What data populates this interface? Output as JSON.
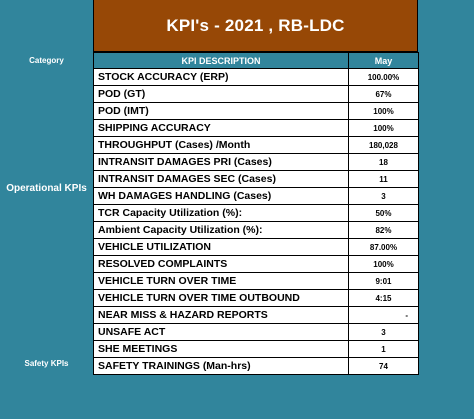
{
  "title": "KPI's - 2021 , RB-LDC",
  "categories": {
    "category_header": "Category",
    "operational": "Operational KPIs",
    "safety": "Safety KPIs"
  },
  "table": {
    "headers": [
      "KPI DESCRIPTION",
      "May"
    ],
    "rows": [
      {
        "kpi": "STOCK ACCURACY (ERP)",
        "may": "100.00%"
      },
      {
        "kpi": "POD (GT)",
        "may": "67%"
      },
      {
        "kpi": "POD (IMT)",
        "may": "100%"
      },
      {
        "kpi": "SHIPPING ACCURACY",
        "may": "100%"
      },
      {
        "kpi": "THROUGHPUT (Cases) /Month",
        "may": "180,028"
      },
      {
        "kpi": "INTRANSIT DAMAGES PRI (Cases)",
        "may": "18"
      },
      {
        "kpi": "INTRANSIT DAMAGES SEC (Cases)",
        "may": "11"
      },
      {
        "kpi": "WH DAMAGES HANDLING (Cases)",
        "may": "3"
      },
      {
        "kpi": "TCR Capacity Utilization (%):",
        "may": "50%"
      },
      {
        "kpi": "Ambient Capacity Utilization (%):",
        "may": "82%"
      },
      {
        "kpi": "VEHICLE UTILIZATION",
        "may": "87.00%"
      },
      {
        "kpi": "RESOLVED COMPLAINTS",
        "may": "100%"
      },
      {
        "kpi": "VEHICLE TURN OVER TIME",
        "may": "9:01"
      },
      {
        "kpi": "VEHICLE TURN OVER TIME OUTBOUND",
        "may": "4:15"
      },
      {
        "kpi": "NEAR MISS & HAZARD REPORTS",
        "may": "-"
      },
      {
        "kpi": "UNSAFE ACT",
        "may": "3"
      },
      {
        "kpi": "SHE MEETINGS",
        "may": "1"
      },
      {
        "kpi": "SAFETY TRAININGS (Man-hrs)",
        "may": "74"
      }
    ]
  },
  "colors": {
    "teal": "#31859c",
    "title_brown": "#974806",
    "cell_bg": "#ffffff",
    "text": "#000000"
  }
}
